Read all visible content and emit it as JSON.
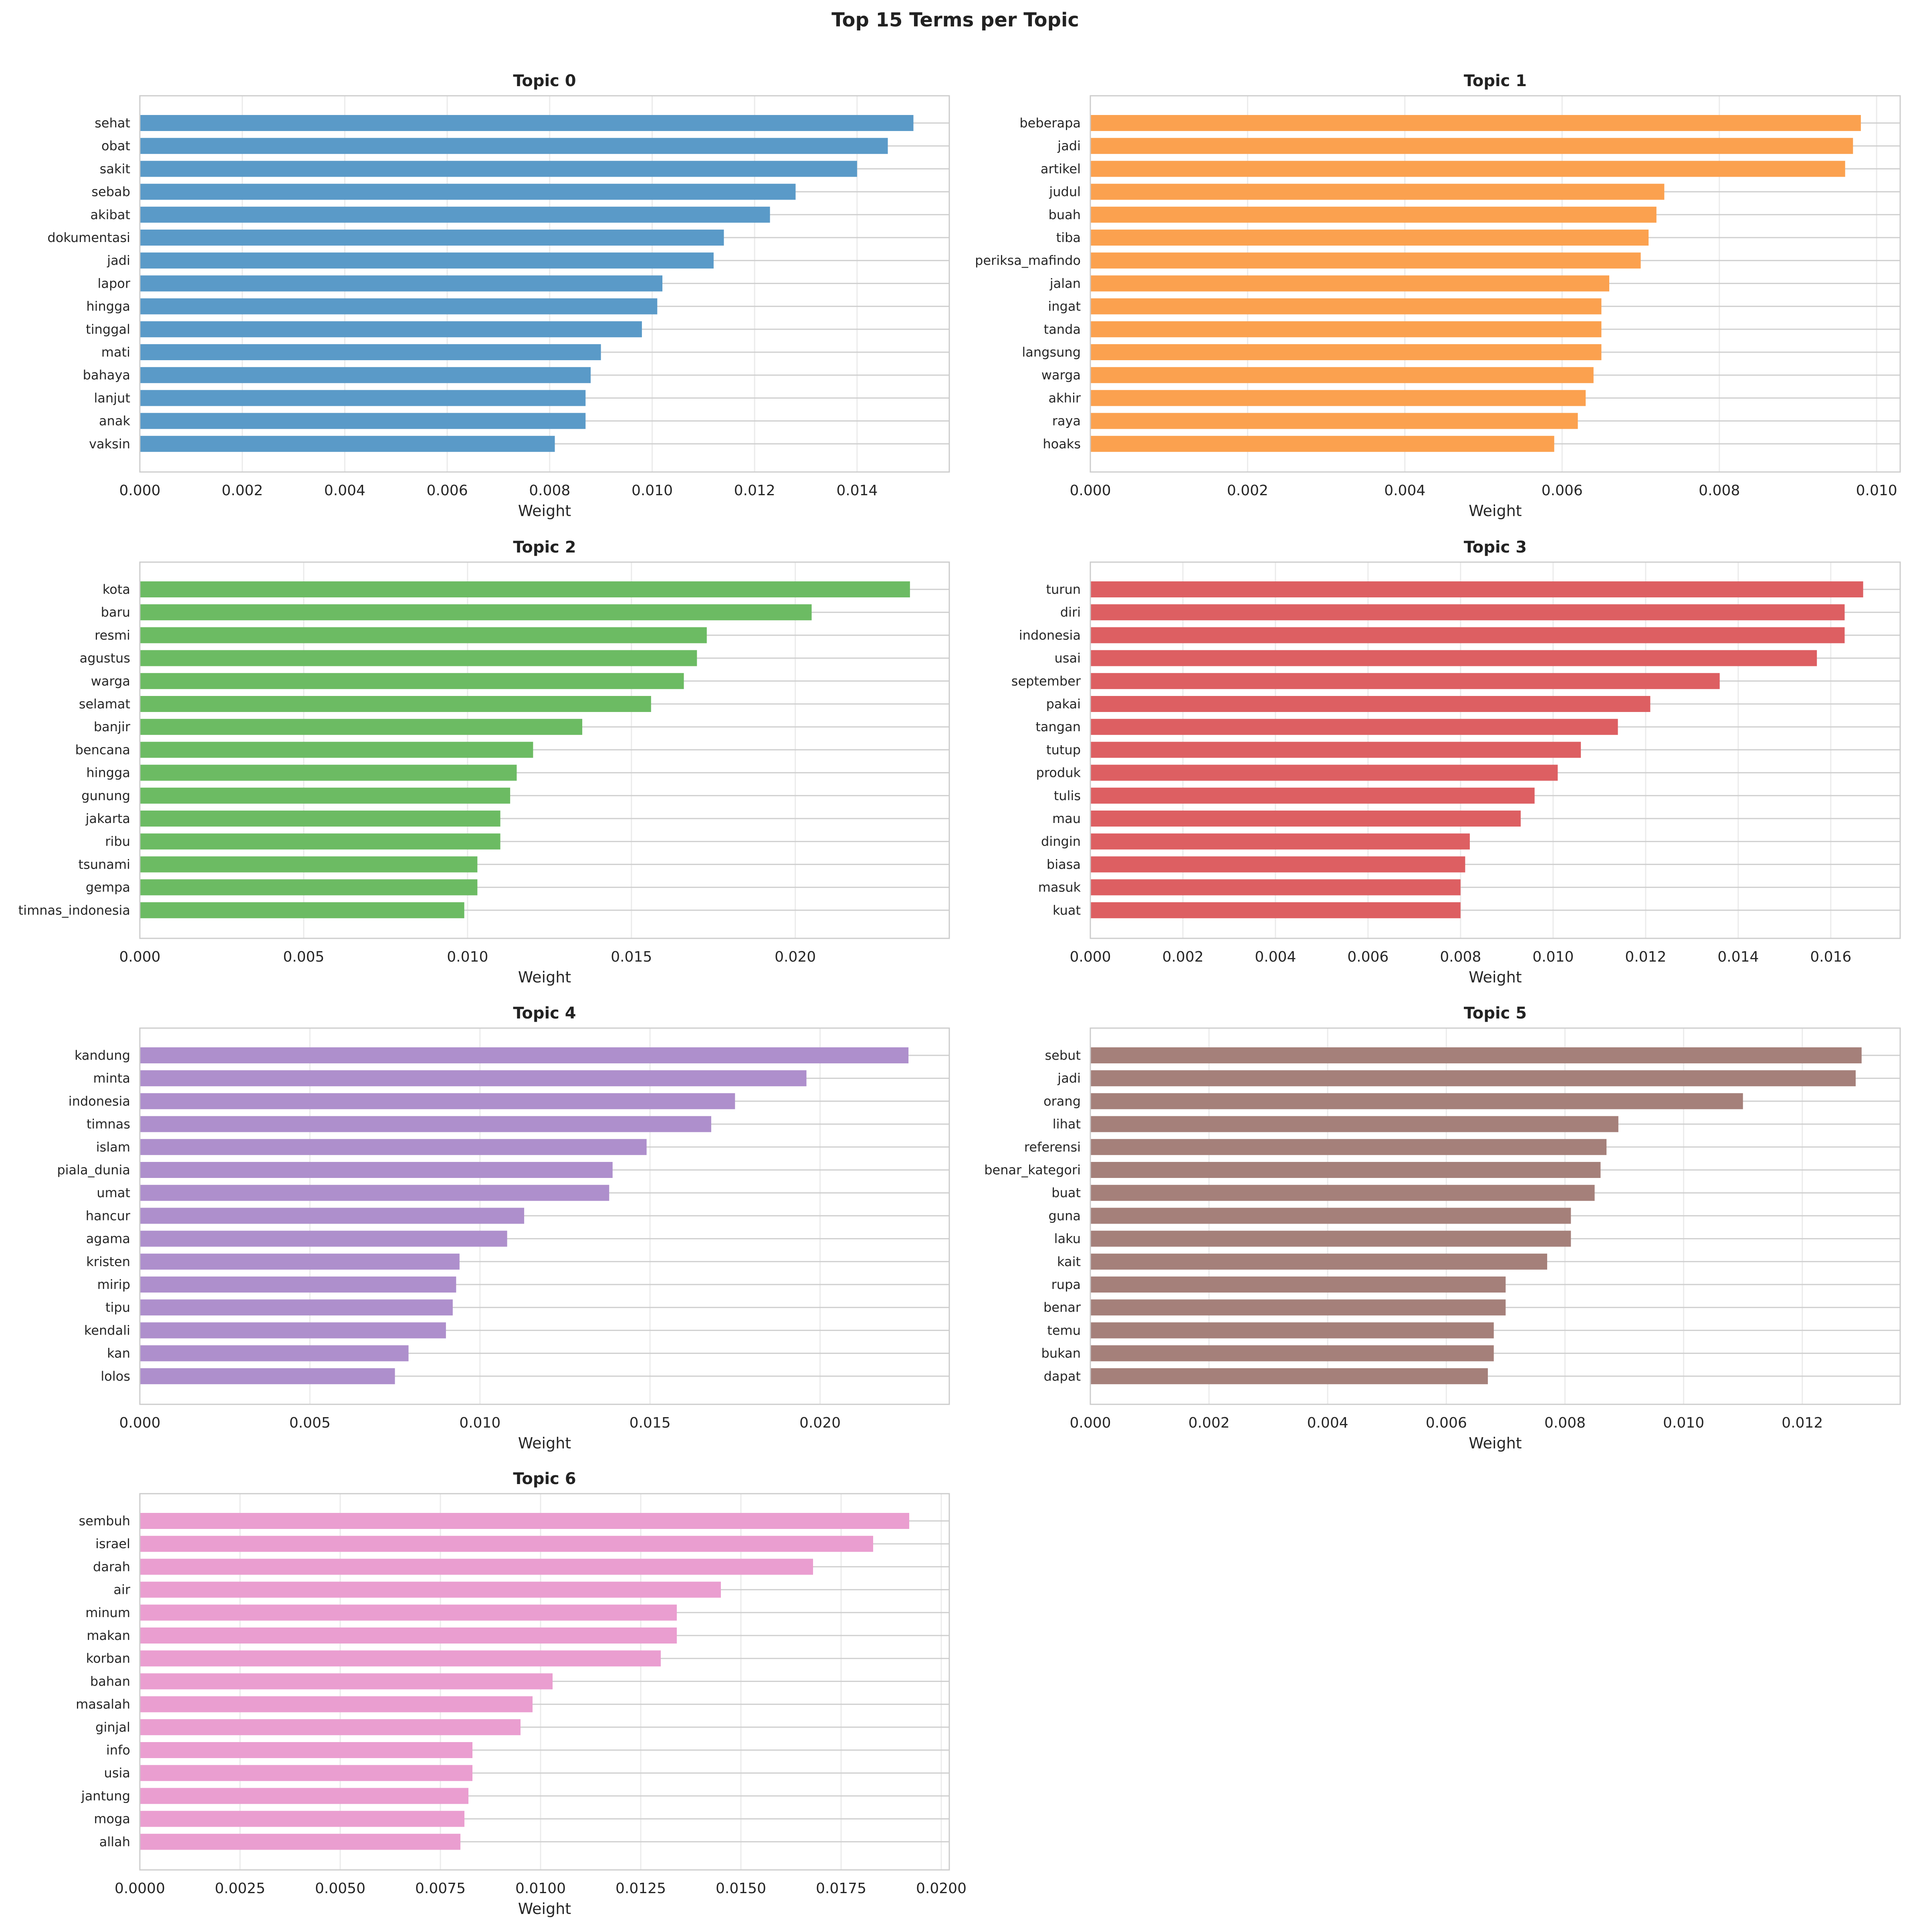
{
  "figure": {
    "title": "Top 15 Terms per Topic"
  },
  "chart_data": [
    {
      "type": "bar",
      "orientation": "horizontal",
      "title": "Topic 0",
      "xlabel": "Weight",
      "color": "#5a9ac8",
      "xlim": [
        0,
        0.0158
      ],
      "xticks": [
        0,
        0.002,
        0.004,
        0.006,
        0.008,
        0.01,
        0.012,
        0.014
      ],
      "xtick_labels": [
        "0.000",
        "0.002",
        "0.004",
        "0.006",
        "0.008",
        "0.010",
        "0.012",
        "0.014"
      ],
      "categories": [
        "sehat",
        "obat",
        "sakit",
        "sebab",
        "akibat",
        "dokumentasi",
        "jadi",
        "lapor",
        "hingga",
        "tinggal",
        "mati",
        "bahaya",
        "lanjut",
        "anak",
        "vaksin"
      ],
      "values": [
        0.0151,
        0.0146,
        0.014,
        0.0128,
        0.0123,
        0.0114,
        0.0112,
        0.0102,
        0.0101,
        0.0098,
        0.009,
        0.0088,
        0.0087,
        0.0087,
        0.0081
      ]
    },
    {
      "type": "bar",
      "orientation": "horizontal",
      "title": "Topic 1",
      "xlabel": "Weight",
      "color": "#fba14f",
      "xlim": [
        0,
        0.0103
      ],
      "xticks": [
        0,
        0.002,
        0.004,
        0.006,
        0.008,
        0.01
      ],
      "xtick_labels": [
        "0.000",
        "0.002",
        "0.004",
        "0.006",
        "0.008",
        "0.010"
      ],
      "categories": [
        "beberapa",
        "jadi",
        "artikel",
        "judul",
        "buah",
        "tiba",
        "periksa_mafindo",
        "jalan",
        "ingat",
        "tanda",
        "langsung",
        "warga",
        "akhir",
        "raya",
        "hoaks"
      ],
      "values": [
        0.0098,
        0.0097,
        0.0096,
        0.0073,
        0.0072,
        0.0071,
        0.007,
        0.0066,
        0.0065,
        0.0065,
        0.0065,
        0.0064,
        0.0063,
        0.0062,
        0.0059
      ]
    },
    {
      "type": "bar",
      "orientation": "horizontal",
      "title": "Topic 2",
      "xlabel": "Weight",
      "color": "#6cbb63",
      "xlim": [
        0,
        0.0247
      ],
      "xticks": [
        0,
        0.005,
        0.01,
        0.015,
        0.02
      ],
      "xtick_labels": [
        "0.000",
        "0.005",
        "0.010",
        "0.015",
        "0.020"
      ],
      "categories": [
        "kota",
        "baru",
        "resmi",
        "agustus",
        "warga",
        "selamat",
        "banjir",
        "bencana",
        "hingga",
        "gunung",
        "jakarta",
        "ribu",
        "tsunami",
        "gempa",
        "timnas_indonesia"
      ],
      "values": [
        0.0235,
        0.0205,
        0.0173,
        0.017,
        0.0166,
        0.0156,
        0.0135,
        0.012,
        0.0115,
        0.0113,
        0.011,
        0.011,
        0.0103,
        0.0103,
        0.0099
      ]
    },
    {
      "type": "bar",
      "orientation": "horizontal",
      "title": "Topic 3",
      "xlabel": "Weight",
      "color": "#dd5f62",
      "xlim": [
        0,
        0.0175
      ],
      "xticks": [
        0,
        0.002,
        0.004,
        0.006,
        0.008,
        0.01,
        0.012,
        0.014,
        0.016
      ],
      "xtick_labels": [
        "0.000",
        "0.002",
        "0.004",
        "0.006",
        "0.008",
        "0.010",
        "0.012",
        "0.014",
        "0.016"
      ],
      "categories": [
        "turun",
        "diri",
        "indonesia",
        "usai",
        "september",
        "pakai",
        "tangan",
        "tutup",
        "produk",
        "tulis",
        "mau",
        "dingin",
        "biasa",
        "masuk",
        "kuat"
      ],
      "values": [
        0.0167,
        0.0163,
        0.0163,
        0.0157,
        0.0136,
        0.0121,
        0.0114,
        0.0106,
        0.0101,
        0.0096,
        0.0093,
        0.0082,
        0.0081,
        0.008,
        0.008
      ]
    },
    {
      "type": "bar",
      "orientation": "horizontal",
      "title": "Topic 4",
      "xlabel": "Weight",
      "color": "#ae8fcc",
      "xlim": [
        0,
        0.0238
      ],
      "xticks": [
        0,
        0.005,
        0.01,
        0.015,
        0.02
      ],
      "xtick_labels": [
        "0.000",
        "0.005",
        "0.010",
        "0.015",
        "0.020"
      ],
      "categories": [
        "kandung",
        "minta",
        "indonesia",
        "timnas",
        "islam",
        "piala_dunia",
        "umat",
        "hancur",
        "agama",
        "kristen",
        "mirip",
        "tipu",
        "kendali",
        "kan",
        "lolos"
      ],
      "values": [
        0.0226,
        0.0196,
        0.0175,
        0.0168,
        0.0149,
        0.0139,
        0.0138,
        0.0113,
        0.0108,
        0.0094,
        0.0093,
        0.0092,
        0.009,
        0.0079,
        0.0075
      ]
    },
    {
      "type": "bar",
      "orientation": "horizontal",
      "title": "Topic 5",
      "xlabel": "Weight",
      "color": "#a5807a",
      "xlim": [
        0,
        0.01365
      ],
      "xticks": [
        0,
        0.002,
        0.004,
        0.006,
        0.008,
        0.01,
        0.012
      ],
      "xtick_labels": [
        "0.000",
        "0.002",
        "0.004",
        "0.006",
        "0.008",
        "0.010",
        "0.012"
      ],
      "categories": [
        "sebut",
        "jadi",
        "orang",
        "lihat",
        "referensi",
        "benar_kategori",
        "buat",
        "guna",
        "laku",
        "kait",
        "rupa",
        "benar",
        "temu",
        "bukan",
        "dapat"
      ],
      "values": [
        0.013,
        0.0129,
        0.011,
        0.0089,
        0.0087,
        0.0086,
        0.0085,
        0.0081,
        0.0081,
        0.0077,
        0.007,
        0.007,
        0.0068,
        0.0068,
        0.0067
      ]
    },
    {
      "type": "bar",
      "orientation": "horizontal",
      "title": "Topic 6",
      "xlabel": "Weight",
      "color": "#ea9ed0",
      "xlim": [
        0,
        0.0202
      ],
      "xticks": [
        0,
        0.0025,
        0.005,
        0.0075,
        0.01,
        0.0125,
        0.015,
        0.0175,
        0.02
      ],
      "xtick_labels": [
        "0.0000",
        "0.0025",
        "0.0050",
        "0.0075",
        "0.0100",
        "0.0125",
        "0.0150",
        "0.0175",
        "0.0200"
      ],
      "categories": [
        "sembuh",
        "israel",
        "darah",
        "air",
        "minum",
        "makan",
        "korban",
        "bahan",
        "masalah",
        "ginjal",
        "info",
        "usia",
        "jantung",
        "moga",
        "allah"
      ],
      "values": [
        0.0192,
        0.0183,
        0.0168,
        0.0145,
        0.0134,
        0.0134,
        0.013,
        0.0103,
        0.0098,
        0.0095,
        0.0083,
        0.0083,
        0.0082,
        0.0081,
        0.008
      ]
    }
  ]
}
